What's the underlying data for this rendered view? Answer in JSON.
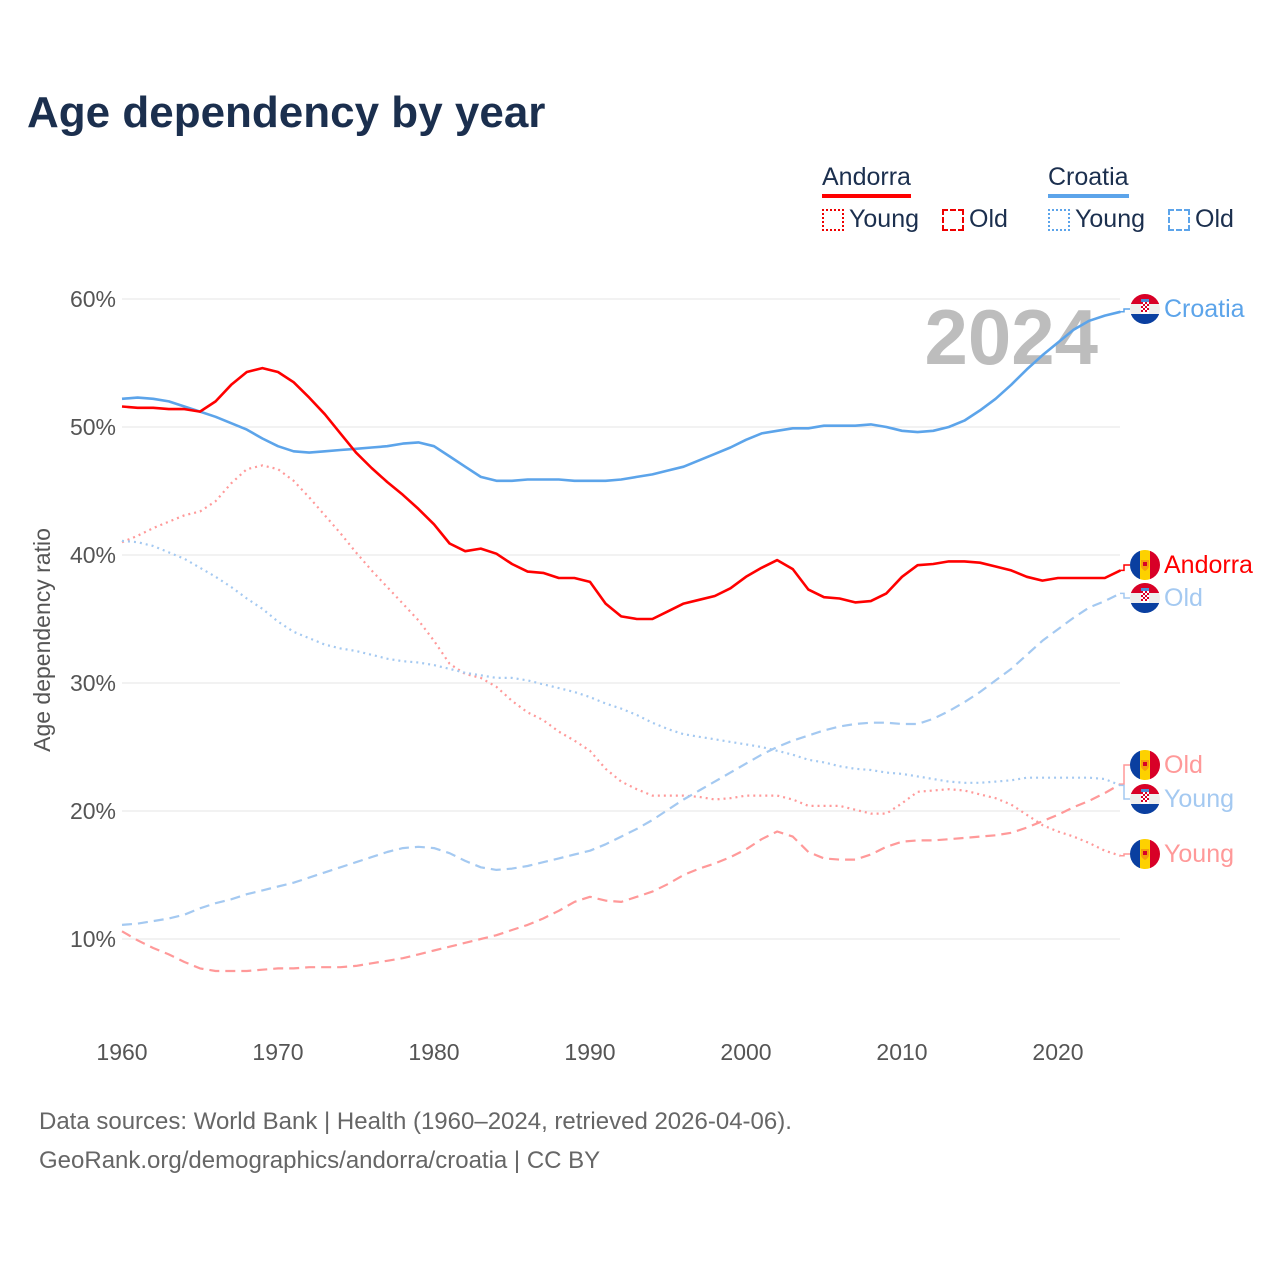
{
  "title": "Age dependency by year",
  "legend": {
    "andorra": {
      "label": "Andorra",
      "young": "Young",
      "old": "Old"
    },
    "croatia": {
      "label": "Croatia",
      "young": "Young",
      "old": "Old"
    }
  },
  "year_watermark": "2024",
  "end_labels": {
    "croatia_total": "Croatia",
    "andorra_total": "Andorra",
    "croatia_old": "Old",
    "andorra_old": "Old",
    "croatia_young": "Young",
    "andorra_young": "Young"
  },
  "footer": {
    "line1": "Data sources: World Bank | Health (1960–2024, retrieved 2026-04-06).",
    "line2": "GeoRank.org/demographics/andorra/croatia | CC BY"
  },
  "colors": {
    "andorra": "#ff0000",
    "andorra_light": "#ff9999",
    "croatia": "#5ca4ea",
    "croatia_light": "#a4c9f1"
  },
  "chart_data": {
    "type": "line",
    "title": "Age dependency by year",
    "xlabel": "",
    "ylabel": "Age dependency ratio",
    "xlim": [
      1960,
      2024
    ],
    "ylim": [
      5,
      60
    ],
    "x_ticks": [
      "1960",
      "1970",
      "1980",
      "1990",
      "2000",
      "2010",
      "2020"
    ],
    "y_ticks": [
      "10%",
      "20%",
      "30%",
      "40%",
      "50%",
      "60%"
    ],
    "y_tick_values": [
      10,
      20,
      30,
      40,
      50,
      60
    ],
    "x_tick_values": [
      1960,
      1970,
      1980,
      1990,
      2000,
      2010,
      2020
    ],
    "grid": true,
    "legend_position": "top-right",
    "x_start": 1960,
    "series": [
      {
        "name": "Andorra",
        "style": "solid",
        "color": "#ff0000",
        "values": [
          51.6,
          51.5,
          51.5,
          51.4,
          51.4,
          51.2,
          52.0,
          53.3,
          54.3,
          54.6,
          54.3,
          53.5,
          52.3,
          51.0,
          49.5,
          48.0,
          46.8,
          45.7,
          44.7,
          43.6,
          42.4,
          40.9,
          40.3,
          40.5,
          40.1,
          39.3,
          38.7,
          38.6,
          38.2,
          38.2,
          37.9,
          36.2,
          35.2,
          35.0,
          35.0,
          35.6,
          36.2,
          36.5,
          36.8,
          37.4,
          38.3,
          39.0,
          39.6,
          38.9,
          37.3,
          36.7,
          36.6,
          36.3,
          36.4,
          37.0,
          38.3,
          39.2,
          39.3,
          39.5,
          39.5,
          39.4,
          39.1,
          38.8,
          38.3,
          38.0,
          38.2,
          38.2,
          38.2,
          38.2,
          38.8
        ]
      },
      {
        "name": "Croatia",
        "style": "solid",
        "color": "#5ca4ea",
        "values": [
          52.2,
          52.3,
          52.2,
          52.0,
          51.6,
          51.2,
          50.8,
          50.3,
          49.8,
          49.1,
          48.5,
          48.1,
          48.0,
          48.1,
          48.2,
          48.3,
          48.4,
          48.5,
          48.7,
          48.8,
          48.5,
          47.7,
          46.9,
          46.1,
          45.8,
          45.8,
          45.9,
          45.9,
          45.9,
          45.8,
          45.8,
          45.8,
          45.9,
          46.1,
          46.3,
          46.6,
          46.9,
          47.4,
          47.9,
          48.4,
          49.0,
          49.5,
          49.7,
          49.9,
          49.9,
          50.1,
          50.1,
          50.1,
          50.2,
          50.0,
          49.7,
          49.6,
          49.7,
          50.0,
          50.5,
          51.3,
          52.2,
          53.3,
          54.5,
          55.6,
          56.6,
          57.6,
          58.3,
          58.7,
          59.0
        ]
      },
      {
        "name": "Andorra Young",
        "style": "dotted",
        "color": "#ff9999",
        "values": [
          41.0,
          41.5,
          42.1,
          42.6,
          43.1,
          43.4,
          44.2,
          45.6,
          46.7,
          47.0,
          46.7,
          45.8,
          44.5,
          43.1,
          41.7,
          40.2,
          38.8,
          37.5,
          36.2,
          34.9,
          33.3,
          31.5,
          30.7,
          30.4,
          29.7,
          28.6,
          27.7,
          27.1,
          26.2,
          25.5,
          24.7,
          23.3,
          22.3,
          21.7,
          21.2,
          21.2,
          21.2,
          21.1,
          20.9,
          21.0,
          21.2,
          21.2,
          21.2,
          20.9,
          20.4,
          20.4,
          20.4,
          20.1,
          19.8,
          19.8,
          20.6,
          21.5,
          21.6,
          21.7,
          21.6,
          21.3,
          21.0,
          20.5,
          19.7,
          18.9,
          18.4,
          18.0,
          17.5,
          16.9,
          16.5
        ]
      },
      {
        "name": "Andorra Old",
        "style": "dashed",
        "color": "#ff9999",
        "values": [
          10.6,
          9.9,
          9.3,
          8.8,
          8.2,
          7.7,
          7.5,
          7.5,
          7.5,
          7.6,
          7.7,
          7.7,
          7.8,
          7.8,
          7.8,
          7.9,
          8.1,
          8.3,
          8.5,
          8.8,
          9.1,
          9.4,
          9.7,
          10.0,
          10.3,
          10.7,
          11.1,
          11.6,
          12.2,
          12.9,
          13.3,
          13.0,
          12.9,
          13.3,
          13.7,
          14.3,
          15.0,
          15.5,
          15.9,
          16.4,
          17.0,
          17.8,
          18.4,
          18.0,
          16.8,
          16.3,
          16.2,
          16.2,
          16.6,
          17.2,
          17.6,
          17.7,
          17.7,
          17.8,
          17.9,
          18.0,
          18.1,
          18.3,
          18.7,
          19.2,
          19.7,
          20.3,
          20.8,
          21.4,
          22.1
        ]
      },
      {
        "name": "Croatia Young",
        "style": "dotted",
        "color": "#a4c9f1",
        "values": [
          41.1,
          41.0,
          40.7,
          40.2,
          39.7,
          39.0,
          38.3,
          37.5,
          36.6,
          35.8,
          34.8,
          34.0,
          33.5,
          33.0,
          32.7,
          32.5,
          32.2,
          31.9,
          31.7,
          31.6,
          31.4,
          31.1,
          30.8,
          30.6,
          30.4,
          30.4,
          30.2,
          29.9,
          29.6,
          29.3,
          28.9,
          28.4,
          28.0,
          27.5,
          26.9,
          26.4,
          26.0,
          25.8,
          25.6,
          25.4,
          25.2,
          25.0,
          24.7,
          24.4,
          24.0,
          23.8,
          23.5,
          23.3,
          23.2,
          23.0,
          22.9,
          22.7,
          22.5,
          22.3,
          22.2,
          22.2,
          22.3,
          22.4,
          22.6,
          22.6,
          22.6,
          22.6,
          22.6,
          22.5,
          22.0
        ]
      },
      {
        "name": "Croatia Old",
        "style": "dashed",
        "color": "#a4c9f1",
        "values": [
          11.1,
          11.2,
          11.4,
          11.6,
          11.9,
          12.4,
          12.8,
          13.1,
          13.5,
          13.8,
          14.1,
          14.4,
          14.8,
          15.2,
          15.6,
          16.0,
          16.4,
          16.8,
          17.1,
          17.2,
          17.1,
          16.7,
          16.1,
          15.6,
          15.4,
          15.5,
          15.7,
          16.0,
          16.3,
          16.6,
          16.9,
          17.4,
          18.0,
          18.6,
          19.3,
          20.1,
          20.9,
          21.6,
          22.3,
          23.0,
          23.7,
          24.4,
          25.0,
          25.5,
          25.9,
          26.3,
          26.6,
          26.8,
          26.9,
          26.9,
          26.8,
          26.8,
          27.2,
          27.8,
          28.5,
          29.3,
          30.2,
          31.1,
          32.2,
          33.3,
          34.2,
          35.1,
          35.9,
          36.4,
          37.0
        ]
      }
    ]
  }
}
